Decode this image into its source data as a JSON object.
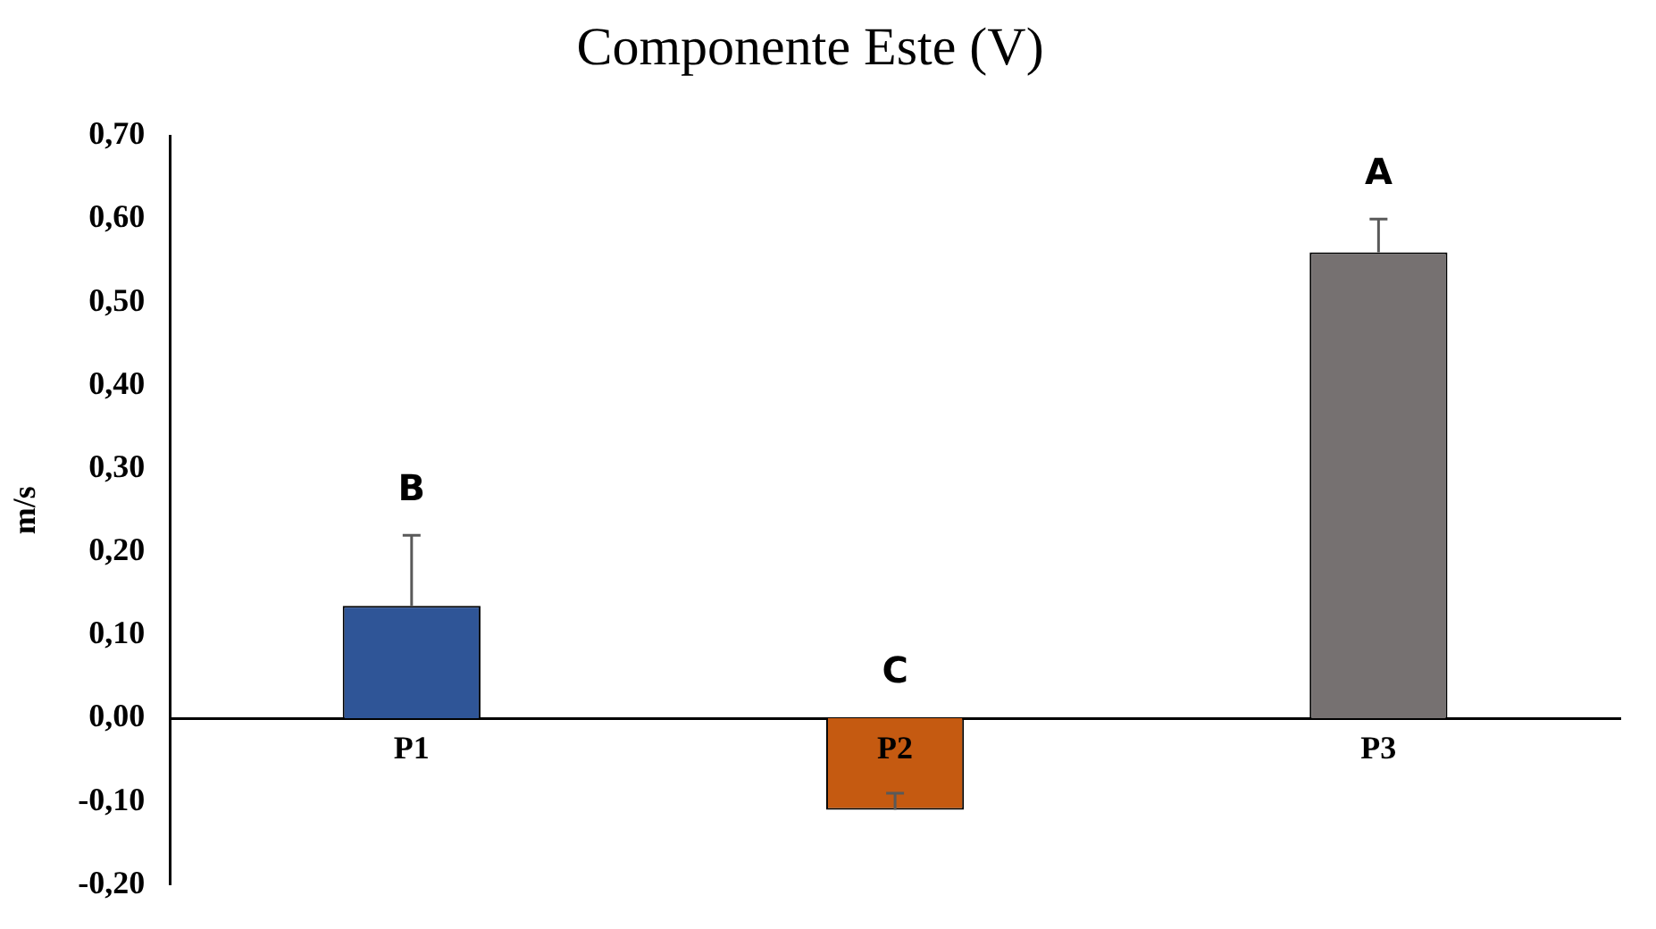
{
  "chart_data": {
    "type": "bar",
    "title": "Componente Este (V)",
    "ylabel": "m/s",
    "categories": [
      "P1",
      "P2",
      "P3"
    ],
    "values": [
      0.135,
      -0.11,
      0.56
    ],
    "colors": [
      "#2f5597",
      "#c55a11",
      "#767171"
    ],
    "errors": [
      [
        0.135,
        0.22
      ],
      [
        -0.11,
        -0.09
      ],
      [
        0.56,
        0.6
      ]
    ],
    "ylim": [
      -0.2,
      0.7
    ],
    "yticks": [
      {
        "value": -0.2,
        "label": "-0,20"
      },
      {
        "value": -0.1,
        "label": "-0,10"
      },
      {
        "value": 0,
        "label": "0,00"
      },
      {
        "value": 0.1,
        "label": "0,10"
      },
      {
        "value": 0.2,
        "label": "0,20"
      },
      {
        "value": 0.3,
        "label": "0,30"
      },
      {
        "value": 0.4,
        "label": "0,40"
      },
      {
        "value": 0.5,
        "label": "0,50"
      },
      {
        "value": 0.6,
        "label": "0,60"
      },
      {
        "value": 0.7,
        "label": "0,70"
      }
    ],
    "annotations": [
      "B",
      "C",
      "A"
    ],
    "grid": false,
    "legend": false
  }
}
